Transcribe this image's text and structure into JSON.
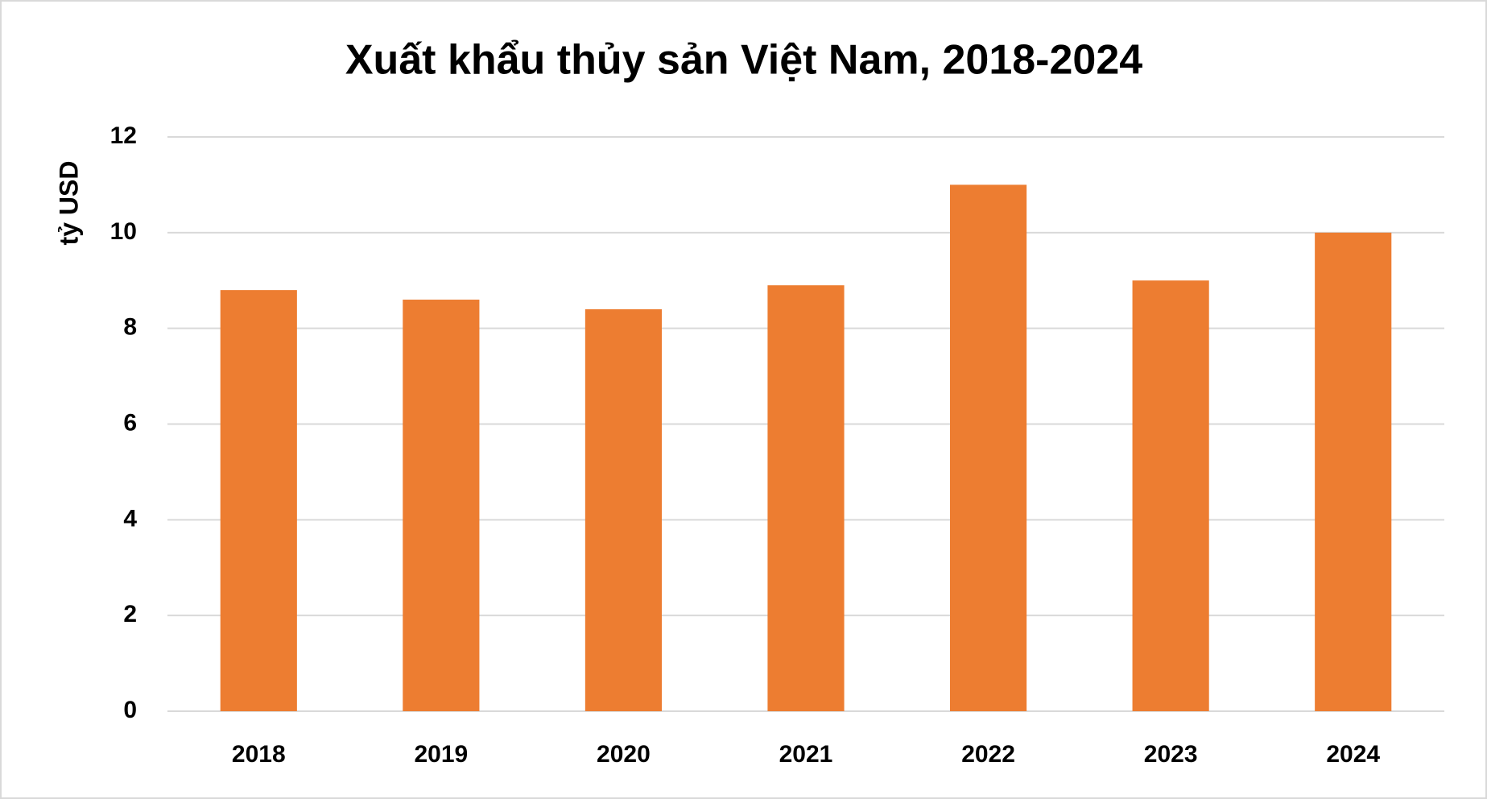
{
  "chart_data": {
    "type": "bar",
    "title": "Xuất khẩu thủy sản Việt Nam, 2018-2024",
    "y_label": "tỷ USD",
    "categories": [
      "2018",
      "2019",
      "2020",
      "2021",
      "2022",
      "2023",
      "2024"
    ],
    "values": [
      8.8,
      8.6,
      8.4,
      8.9,
      11,
      9.0,
      10.0
    ],
    "color": "#ed7d31",
    "ylim": [
      0,
      12
    ],
    "yticks": [
      0,
      2,
      4,
      6,
      8,
      10,
      12
    ],
    "grid": true
  }
}
